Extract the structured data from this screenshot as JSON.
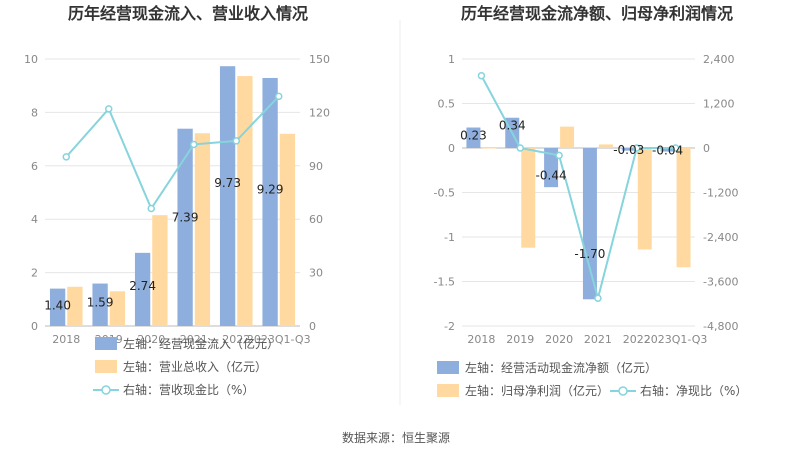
{
  "footer": {
    "source": "数据来源：恒生聚源"
  },
  "colors": {
    "blue": "#8eaedd",
    "orange": "#ffd9a0",
    "line": "#86d4dc",
    "grid": "#e6e6e6",
    "axis": "#bbbbbb"
  },
  "chart_data": [
    {
      "type": "bar",
      "title": "历年经营现金流入、营业收入情况",
      "categories": [
        "2018",
        "2019",
        "2020",
        "2021",
        "2022",
        "2023Q1-Q3"
      ],
      "left_ticks": [
        "0",
        "2",
        "4",
        "6",
        "8",
        "10"
      ],
      "right_ticks": [
        "0",
        "30",
        "60",
        "90",
        "120",
        "150"
      ],
      "ylim_left": [
        0,
        10
      ],
      "ylim_right": [
        0,
        150
      ],
      "series": [
        {
          "name": "左轴：经营现金流入（亿元）",
          "axis": "left",
          "kind": "bar",
          "color": "#8eaedd",
          "values": [
            1.4,
            1.59,
            2.74,
            7.39,
            9.73,
            9.29
          ],
          "labels": [
            "1.40",
            "1.59",
            "2.74",
            "7.39",
            "9.73",
            "9.29"
          ]
        },
        {
          "name": "左轴：营业总收入（亿元）",
          "axis": "left",
          "kind": "bar",
          "color": "#ffd9a0",
          "values": [
            1.47,
            1.3,
            4.15,
            7.22,
            9.36,
            7.2
          ]
        },
        {
          "name": "右轴：营收现金比（%）",
          "axis": "right",
          "kind": "line",
          "color": "#86d4dc",
          "values": [
            95,
            122,
            66,
            102,
            104,
            129
          ]
        }
      ]
    },
    {
      "type": "bar",
      "title": "历年经营现金流净额、归母净利润情况",
      "categories": [
        "2018",
        "2019",
        "2020",
        "2021",
        "2022",
        "2023Q1-Q3"
      ],
      "left_ticks": [
        "-2",
        "-1.5",
        "-1",
        "-0.5",
        "0",
        "0.5",
        "1"
      ],
      "right_ticks": [
        "-4,800",
        "-3,600",
        "-2,400",
        "-1,200",
        "0",
        "1,200",
        "2,400"
      ],
      "ylim_left": [
        -2,
        1
      ],
      "ylim_right": [
        -4800,
        2400
      ],
      "series": [
        {
          "name": "左轴：经营活动现金流净额（亿元）",
          "axis": "left",
          "kind": "bar",
          "color": "#8eaedd",
          "values": [
            0.23,
            0.34,
            -0.44,
            -1.7,
            -0.03,
            -0.04
          ],
          "labels": [
            "0.23",
            "0.34",
            "-0.44",
            "-1.70",
            "-0.03",
            "-0.04"
          ]
        },
        {
          "name": "左轴：归母净利润（亿元）",
          "axis": "left",
          "kind": "bar",
          "color": "#ffd9a0",
          "values": [
            0.0,
            -1.12,
            0.24,
            0.04,
            -1.14,
            -1.34
          ]
        },
        {
          "name": "右轴：净现比（%）",
          "axis": "right",
          "kind": "line",
          "color": "#86d4dc",
          "values": [
            1950,
            0,
            -200,
            -4050,
            0,
            0
          ]
        }
      ]
    }
  ]
}
